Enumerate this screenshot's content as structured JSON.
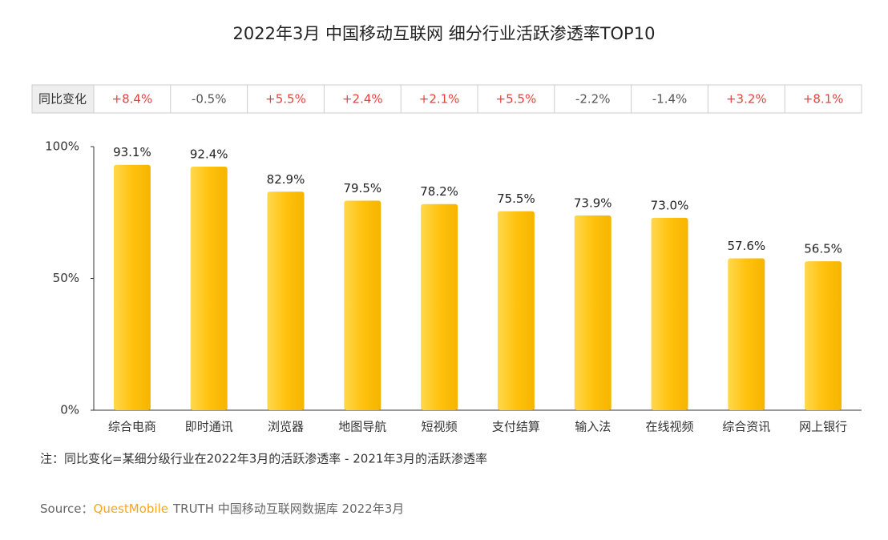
{
  "chart_data": {
    "type": "bar",
    "title": "2022年3月 中国移动互联网 细分行业活跃渗透率TOP10",
    "categories": [
      "综合电商",
      "即时通讯",
      "浏览器",
      "地图导航",
      "短视频",
      "支付结算",
      "输入法",
      "在线视频",
      "综合资讯",
      "网上银行"
    ],
    "values": [
      93.1,
      92.4,
      82.9,
      79.5,
      78.2,
      75.5,
      73.9,
      73.0,
      57.6,
      56.5
    ],
    "value_labels": [
      "93.1%",
      "92.4%",
      "82.9%",
      "79.5%",
      "78.2%",
      "75.5%",
      "73.9%",
      "73.0%",
      "57.6%",
      "56.5%"
    ],
    "color": "#ffc20e",
    "ylim": [
      0,
      100
    ],
    "yticks": [
      {
        "value": 0,
        "label": "0%"
      },
      {
        "value": 50,
        "label": "50%"
      },
      {
        "value": 100,
        "label": "100%"
      }
    ],
    "yoy_change": {
      "label": "同比变化",
      "values": [
        8.4,
        -0.5,
        5.5,
        2.4,
        2.1,
        5.5,
        -2.2,
        -1.4,
        3.2,
        8.1
      ],
      "value_labels": [
        "+8.4%",
        "-0.5%",
        "+5.5%",
        "+2.4%",
        "+2.1%",
        "+5.5%",
        "-2.2%",
        "-1.4%",
        "+3.2%",
        "+8.1%"
      ],
      "positive_color": "#e8413c",
      "negative_color": "#555555"
    },
    "note": "注：同比变化=某细分级行业在2022年3月的活跃渗透率 - 2021年3月的活跃渗透率",
    "source": {
      "label": "Source：",
      "brand": "QuestMobile",
      "text": "TRUTH 中国移动互联网数据库 2022年3月"
    }
  }
}
